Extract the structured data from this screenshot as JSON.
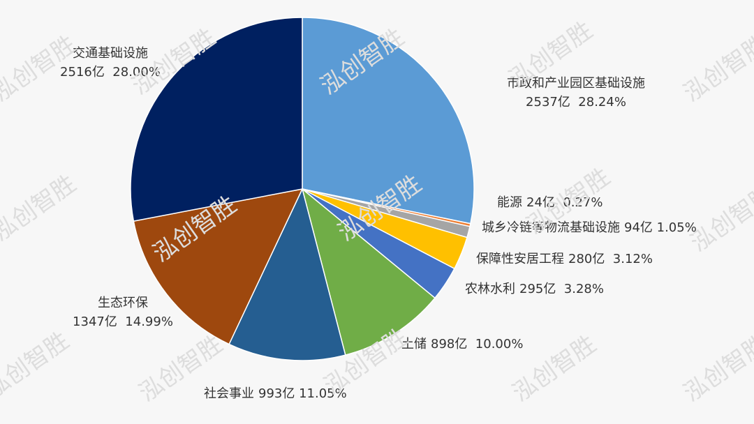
{
  "chart_data": {
    "type": "pie",
    "watermark": "泓创智胜",
    "categories": [
      "市政和产业园区基础设施",
      "能源",
      "城乡冷链等物流基础设施",
      "保障性安居工程",
      "农林水利",
      "土储",
      "社会事业",
      "生态环保",
      "交通基础设施"
    ],
    "values": [
      28.24,
      0.27,
      1.05,
      3.12,
      3.28,
      10.0,
      11.05,
      14.99,
      28.0
    ],
    "value_labels": [
      "2537亿  28.24%",
      "24亿  0.27%",
      "94亿 1.05%",
      "280亿  3.12%",
      "295亿  3.28%",
      "898亿  10.00%",
      "993亿 11.05%",
      "1347亿  14.99%",
      "2516亿  28.00%"
    ],
    "colors": [
      "#5b9bd5",
      "#ed7d31",
      "#a5a5a5",
      "#ffc000",
      "#4472c4",
      "#70ad47",
      "#255e91",
      "#9e480e",
      "#002060"
    ]
  }
}
